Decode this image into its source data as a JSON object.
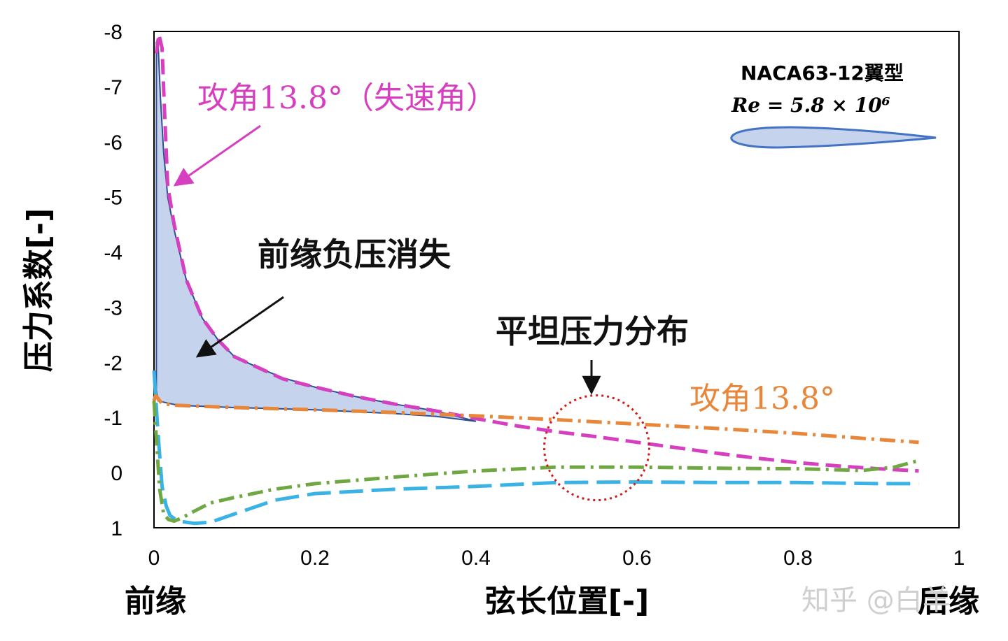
{
  "chart_data": {
    "type": "line",
    "ylabel": "压力系数[-]",
    "xlabel": "弦长位置[-]",
    "xlim": [
      0,
      1
    ],
    "ylim": [
      1,
      -8
    ],
    "x_ticks": [
      "0",
      "0.2",
      "0.4",
      "0.6",
      "0.8",
      "1"
    ],
    "y_ticks": [
      "-8",
      "-7",
      "-6",
      "-5",
      "-4",
      "-3",
      "-2",
      "-1",
      "0",
      "1"
    ],
    "x_tick_values": [
      0,
      0.2,
      0.4,
      0.6,
      0.8,
      1
    ],
    "y_tick_values": [
      -8,
      -7,
      -6,
      -5,
      -4,
      -3,
      -2,
      -1,
      0,
      1
    ],
    "leading_edge_label": "前缘",
    "trailing_edge_label": "后缘",
    "legend": {
      "title": "NACA63-12翼型",
      "reynolds": "Re = 5.8 × 10⁶"
    },
    "annotations": {
      "stall": "攻角13.8°（失速角）",
      "le_suction_loss": "前缘负压消失",
      "flat_distribution": "平坦压力分布",
      "aoa": "攻角13.8°"
    },
    "series": [
      {
        "color": "#d63fbf",
        "dash": "dash",
        "x": [
          0.003,
          0.006,
          0.01,
          0.013,
          0.017,
          0.025,
          0.04,
          0.06,
          0.08,
          0.1,
          0.13,
          0.16,
          0.2,
          0.25,
          0.3,
          0.35,
          0.4,
          0.45,
          0.5,
          0.55,
          0.6,
          0.65,
          0.7,
          0.75,
          0.8,
          0.85,
          0.9,
          0.95
        ],
        "y": [
          -7.6,
          -7.95,
          -7.7,
          -6.6,
          -5.2,
          -4.5,
          -3.5,
          -2.8,
          -2.4,
          -2.1,
          -1.9,
          -1.7,
          -1.55,
          -1.38,
          -1.24,
          -1.12,
          -0.98,
          -0.85,
          -0.74,
          -0.65,
          -0.55,
          -0.45,
          -0.35,
          -0.26,
          -0.18,
          -0.12,
          -0.07,
          -0.03
        ]
      },
      {
        "color": "#e8863a",
        "dash": "dashdot",
        "x": [
          0,
          0.002,
          0.01,
          0.03,
          0.1,
          0.2,
          0.3,
          0.4,
          0.5,
          0.6,
          0.7,
          0.8,
          0.9,
          0.95
        ],
        "y": [
          -1.3,
          -1.4,
          -1.25,
          -1.22,
          -1.18,
          -1.14,
          -1.09,
          -1.03,
          -0.96,
          -0.88,
          -0.8,
          -0.71,
          -0.6,
          -0.55
        ]
      },
      {
        "color": "#3ab2e6",
        "dash": "longdash",
        "x": [
          0,
          0.002,
          0.005,
          0.01,
          0.015,
          0.02,
          0.03,
          0.05,
          0.07,
          0.1,
          0.15,
          0.2,
          0.3,
          0.4,
          0.5,
          0.6,
          0.7,
          0.8,
          0.9,
          0.95
        ],
        "y": [
          -1.85,
          -1.4,
          -0.7,
          0.25,
          0.6,
          0.78,
          0.88,
          0.92,
          0.9,
          0.75,
          0.5,
          0.38,
          0.3,
          0.25,
          0.18,
          0.17,
          0.18,
          0.18,
          0.2,
          0.2
        ]
      },
      {
        "color": "#6fa842",
        "dash": "dashdot",
        "x": [
          0,
          0.003,
          0.007,
          0.012,
          0.018,
          0.025,
          0.035,
          0.05,
          0.07,
          0.1,
          0.15,
          0.2,
          0.3,
          0.4,
          0.5,
          0.6,
          0.7,
          0.8,
          0.88,
          0.92,
          0.95
        ],
        "y": [
          -1.3,
          -0.6,
          0.3,
          0.75,
          0.85,
          0.88,
          0.82,
          0.7,
          0.55,
          0.45,
          0.3,
          0.2,
          0.08,
          -0.03,
          -0.1,
          -0.1,
          -0.08,
          -0.07,
          -0.04,
          -0.1,
          -0.22
        ]
      }
    ],
    "shaded_region": {
      "color": "#c5d4ec",
      "upper_x": [
        0.003,
        0.005,
        0.008,
        0.012,
        0.017,
        0.025,
        0.04,
        0.06,
        0.08,
        0.1,
        0.13,
        0.16,
        0.2,
        0.25,
        0.3,
        0.35,
        0.4
      ],
      "upper_y": [
        -7.8,
        -7.8,
        -6.8,
        -5.8,
        -5.0,
        -4.4,
        -3.5,
        -2.8,
        -2.4,
        -2.1,
        -1.9,
        -1.72,
        -1.55,
        -1.38,
        -1.24,
        -1.12,
        -0.93
      ],
      "lower_x": [
        0.4,
        0.35,
        0.3,
        0.2,
        0.1,
        0.03,
        0.005,
        0.003
      ],
      "lower_y": [
        -0.93,
        -1.02,
        -1.07,
        -1.14,
        -1.18,
        -1.22,
        -1.3,
        -1.5
      ]
    },
    "circle_highlight": {
      "cx": 0.55,
      "cy": -0.45,
      "color": "#d11a1a"
    },
    "airfoil_color": "#4472c4",
    "airfoil_fill": "#c5d4ec"
  },
  "watermark": "知乎 @白羊"
}
